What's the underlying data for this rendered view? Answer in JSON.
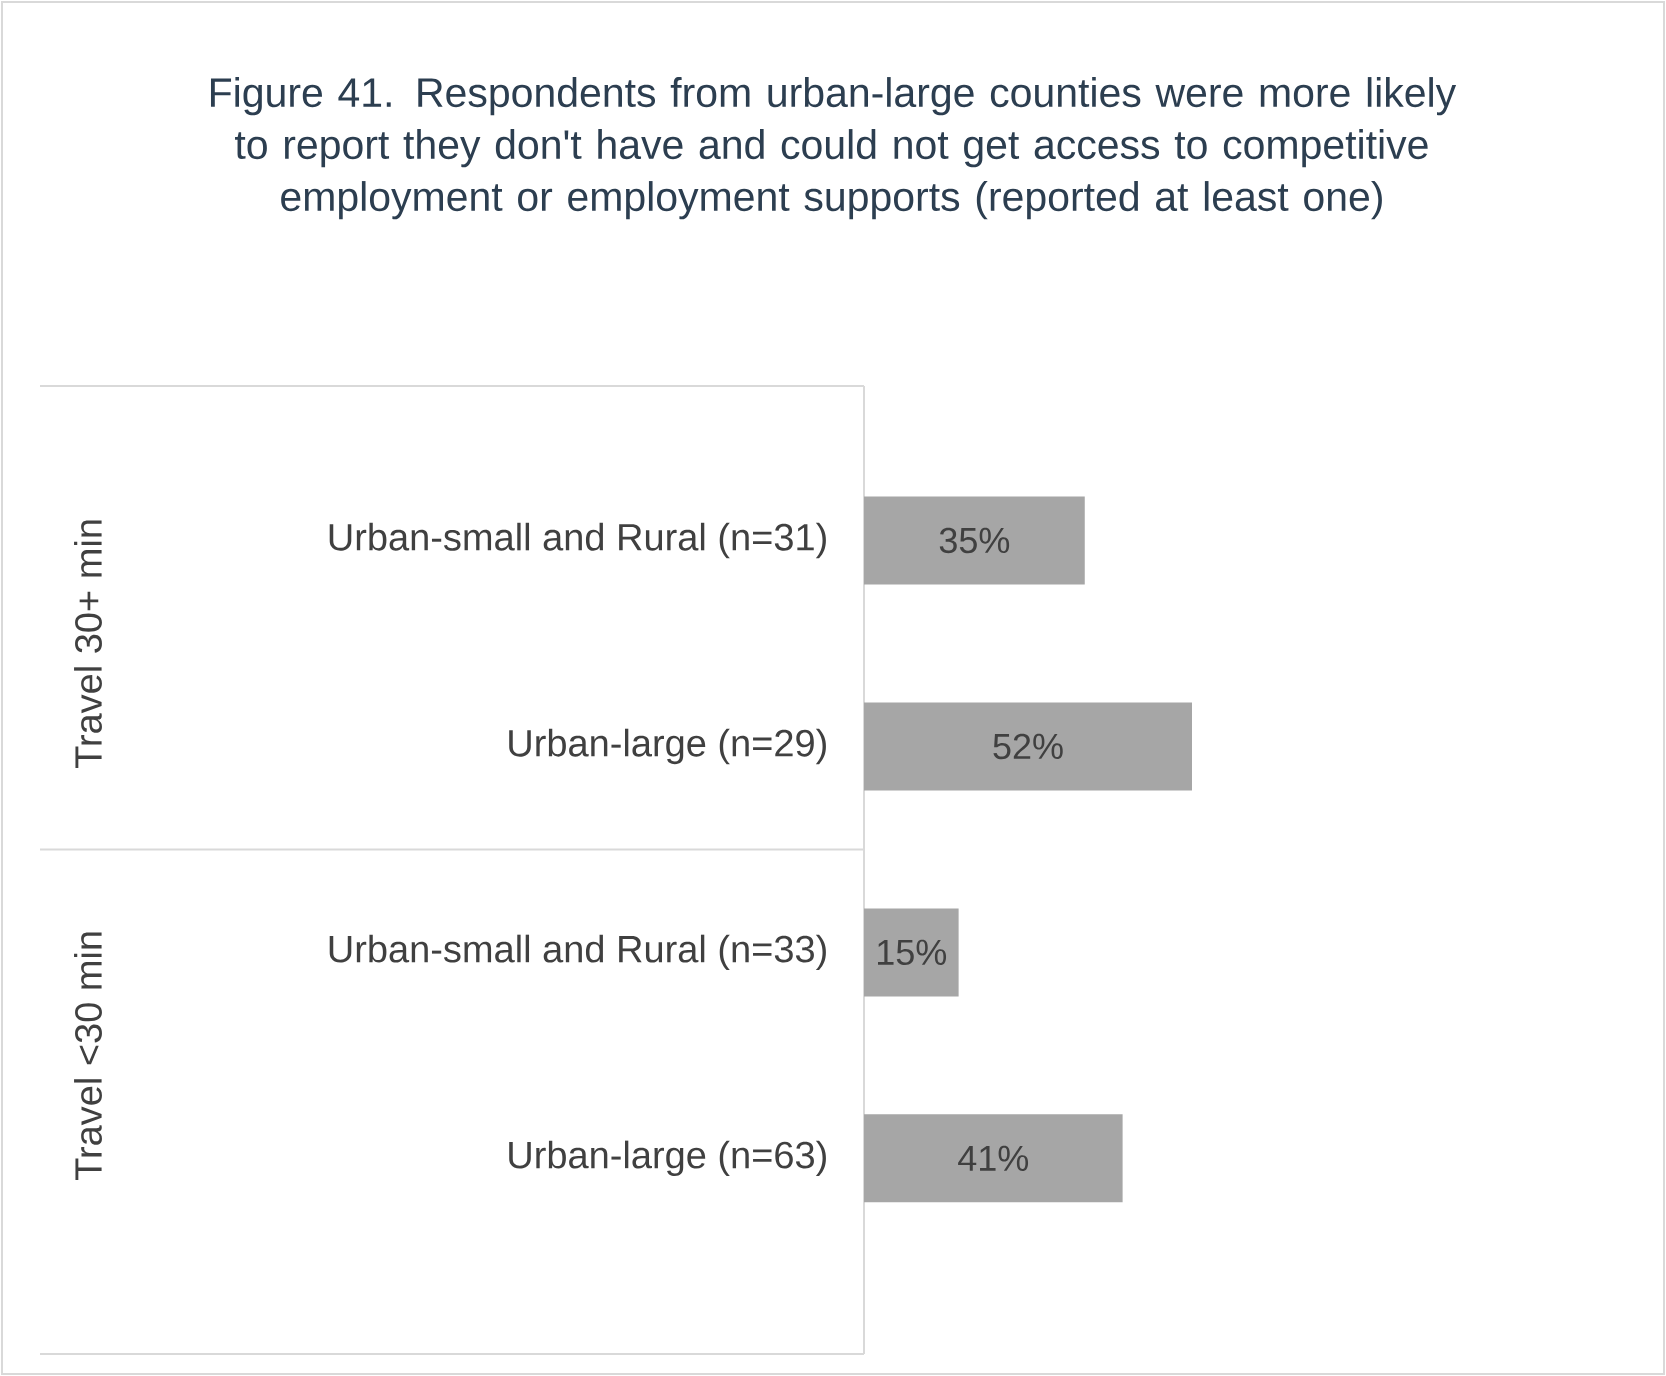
{
  "chart_data": {
    "type": "bar",
    "orientation": "horizontal",
    "title": "Figure 41. Respondents from urban-large counties were more likely to report they don't have and could not get access to competitive employment or employment supports (reported at least one)",
    "categories": [
      "Urban-small and Rural (n=31)",
      "Urban-large (n=29)",
      "Urban-small and Rural (n=33)",
      "Urban-large (n=63)"
    ],
    "values": [
      35,
      52,
      15,
      41
    ],
    "value_labels": [
      "35%",
      "52%",
      "15%",
      "41%"
    ],
    "color": "#a6a6a6",
    "annotations": [
      "Travel 30+ min",
      "Travel <30 min"
    ]
  }
}
